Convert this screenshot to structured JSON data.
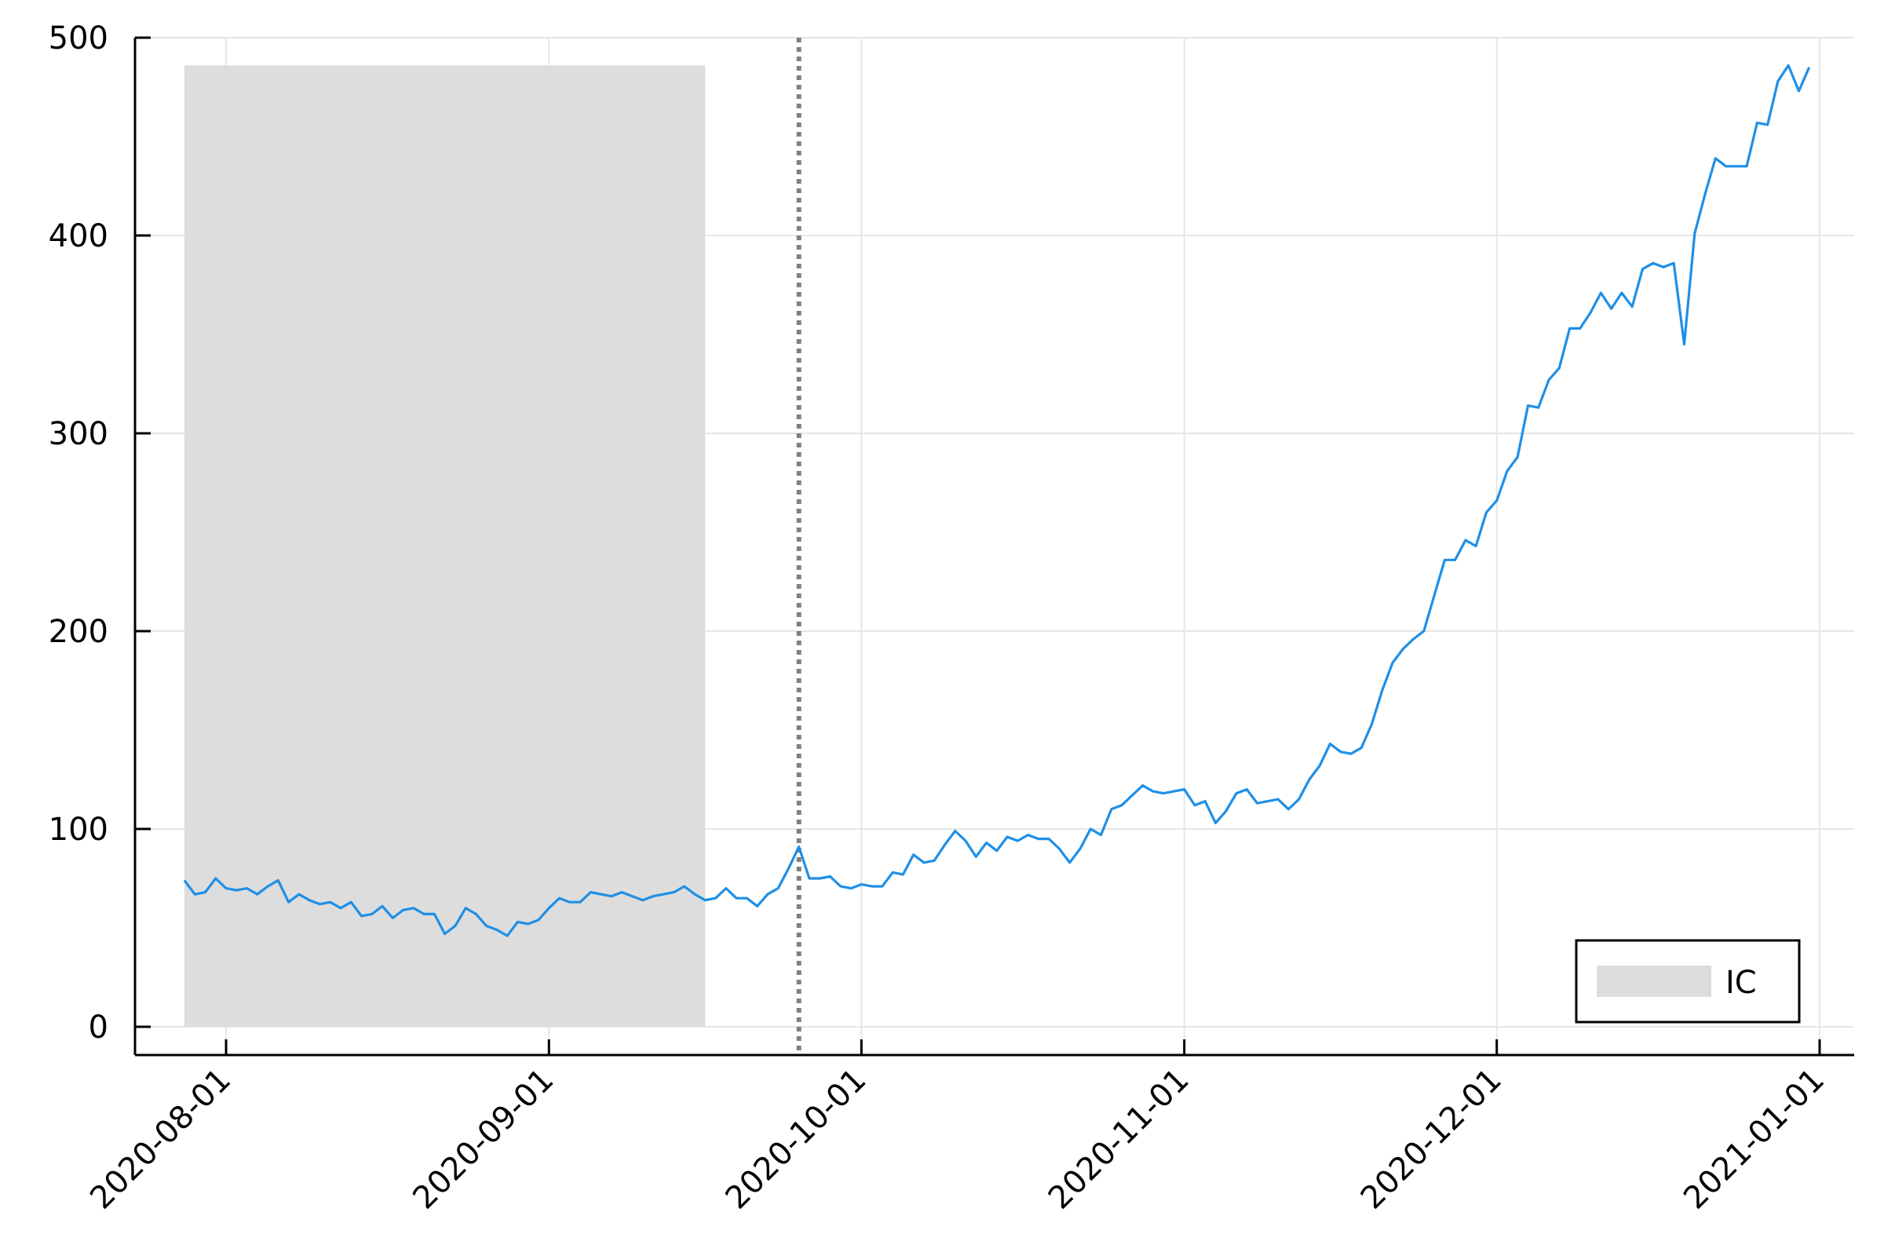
{
  "chart_data": {
    "type": "line",
    "title": "",
    "xlabel": "",
    "ylabel": "",
    "xlim": [
      "2020-07-23",
      "2021-01-01"
    ],
    "ylim": [
      -14,
      500
    ],
    "x_ticks": [
      "2020-08-01",
      "2020-09-01",
      "2020-10-01",
      "2020-11-01",
      "2020-12-01",
      "2021-01-01"
    ],
    "y_ticks": [
      0,
      100,
      200,
      300,
      400,
      500
    ],
    "y_tick_labels": [
      "0",
      "100",
      "200",
      "300",
      "400",
      "500"
    ],
    "grid": true,
    "legend": {
      "position": "bottom-right",
      "entries": [
        {
          "name": "IC",
          "color": "#dddddd",
          "kind": "band"
        }
      ]
    },
    "shaded_band": {
      "name": "IC",
      "x_start": "2020-07-28",
      "x_end": "2020-09-16",
      "y_min": 0,
      "y_max": 486,
      "color": "#dddddd"
    },
    "vertical_line": {
      "x": "2020-09-25",
      "style": "dotted",
      "color": "#808080"
    },
    "series": [
      {
        "color": "#1f8fe6",
        "start_date": "2020-07-28",
        "values": [
          74,
          67,
          68,
          75,
          70,
          69,
          70,
          67,
          71,
          74,
          63,
          67,
          64,
          62,
          63,
          60,
          63,
          56,
          57,
          61,
          55,
          59,
          60,
          57,
          57,
          47,
          51,
          60,
          57,
          51,
          49,
          46,
          53,
          52,
          54,
          60,
          65,
          63,
          63,
          68,
          67,
          66,
          68,
          66,
          64,
          66,
          67,
          68,
          71,
          67,
          64,
          65,
          70,
          65,
          65,
          61,
          67,
          70,
          80,
          91,
          75,
          75,
          76,
          71,
          70,
          72,
          71,
          71,
          78,
          77,
          87,
          83,
          84,
          92,
          99,
          94,
          86,
          93,
          89,
          96,
          94,
          97,
          95,
          95,
          90,
          83,
          90,
          100,
          97,
          110,
          112,
          117,
          122,
          119,
          118,
          119,
          120,
          112,
          114,
          103,
          109,
          118,
          120,
          113,
          114,
          115,
          110,
          115,
          125,
          132,
          143,
          139,
          138,
          141,
          153,
          170,
          184,
          191,
          196,
          200,
          218,
          236,
          236,
          246,
          243,
          260,
          266,
          281,
          288,
          314,
          313,
          327,
          333,
          353,
          353,
          361,
          371,
          363,
          371,
          364,
          383,
          386,
          384,
          386,
          345,
          401,
          421,
          439,
          435,
          435,
          435,
          457,
          456,
          478,
          486,
          473,
          485
        ]
      }
    ]
  }
}
